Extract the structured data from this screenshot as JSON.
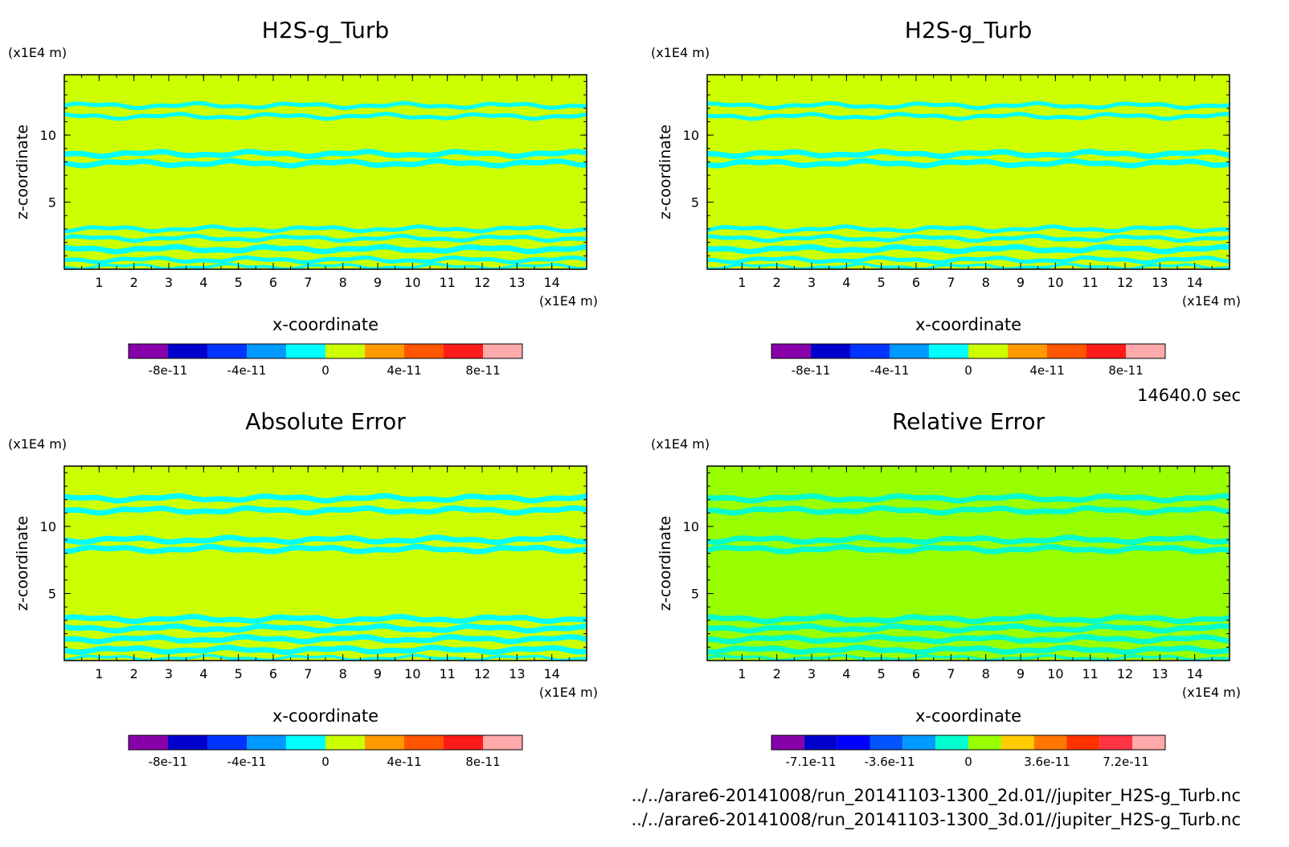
{
  "time_label": "14640.0 sec",
  "files": [
    "../../arare6-20141008/run_20141103-1300_2d.01//jupiter_H2S-g_Turb.nc",
    "../../arare6-20141008/run_20141103-1300_3d.01//jupiter_H2S-g_Turb.nc"
  ],
  "colors": {
    "field": "#ccff00",
    "field_relative": "#99ff00",
    "band": "#00ffff",
    "band_relative": "#00ffcc"
  },
  "chart_data": [
    {
      "type": "heatmap",
      "title": "H2S-g_Turb",
      "xlabel": "x-coordinate",
      "ylabel": "z-coordinate",
      "x_unit": "(x1E4 m)",
      "y_unit": "(x1E4 m)",
      "xlim": [
        0,
        15
      ],
      "ylim": [
        0,
        14.5
      ],
      "x_ticks": [
        "1",
        "2",
        "3",
        "4",
        "5",
        "6",
        "7",
        "8",
        "9",
        "10",
        "11",
        "12",
        "13",
        "14"
      ],
      "y_ticks": [
        "5",
        "10"
      ],
      "colorbar": {
        "colors": [
          "#8800aa",
          "#0000cc",
          "#0033ff",
          "#0099ff",
          "#00ffff",
          "#ccff00",
          "#ff9900",
          "#ff5500",
          "#ff1a1a",
          "#ffaaaa"
        ],
        "labels": [
          "-8e-11",
          "-4e-11",
          "0",
          "4e-11",
          "8e-11"
        ]
      },
      "bands": [
        {
          "z": 12.2,
          "thickness": 0.3
        },
        {
          "z": 11.4,
          "thickness": 0.3
        },
        {
          "z": 8.6,
          "thickness": 0.4
        },
        {
          "z": 7.9,
          "thickness": 0.4
        },
        {
          "z": 3.0,
          "thickness": 0.3
        },
        {
          "z": 2.3,
          "thickness": 0.3
        },
        {
          "z": 1.5,
          "thickness": 0.4
        },
        {
          "z": 0.7,
          "thickness": 0.3
        },
        {
          "z": 0.2,
          "thickness": 0.2
        }
      ]
    },
    {
      "type": "heatmap",
      "title": "H2S-g_Turb",
      "xlabel": "x-coordinate",
      "ylabel": "z-coordinate",
      "x_unit": "(x1E4 m)",
      "y_unit": "(x1E4 m)",
      "xlim": [
        0,
        15
      ],
      "ylim": [
        0,
        14.5
      ],
      "x_ticks": [
        "1",
        "2",
        "3",
        "4",
        "5",
        "6",
        "7",
        "8",
        "9",
        "10",
        "11",
        "12",
        "13",
        "14"
      ],
      "y_ticks": [
        "5",
        "10"
      ],
      "colorbar": {
        "colors": [
          "#8800aa",
          "#0000cc",
          "#0033ff",
          "#0099ff",
          "#00ffff",
          "#ccff00",
          "#ff9900",
          "#ff5500",
          "#ff1a1a",
          "#ffaaaa"
        ],
        "labels": [
          "-8e-11",
          "-4e-11",
          "0",
          "4e-11",
          "8e-11"
        ]
      },
      "bands": [
        {
          "z": 12.2,
          "thickness": 0.3
        },
        {
          "z": 11.4,
          "thickness": 0.3
        },
        {
          "z": 8.6,
          "thickness": 0.4
        },
        {
          "z": 7.9,
          "thickness": 0.4
        },
        {
          "z": 3.0,
          "thickness": 0.3
        },
        {
          "z": 2.3,
          "thickness": 0.3
        },
        {
          "z": 1.5,
          "thickness": 0.4
        },
        {
          "z": 0.7,
          "thickness": 0.3
        },
        {
          "z": 0.2,
          "thickness": 0.2
        }
      ]
    },
    {
      "type": "heatmap",
      "title": "Absolute Error",
      "xlabel": "x-coordinate",
      "ylabel": "z-coordinate",
      "x_unit": "(x1E4 m)",
      "y_unit": "(x1E4 m)",
      "xlim": [
        0,
        15
      ],
      "ylim": [
        0,
        14.5
      ],
      "x_ticks": [
        "1",
        "2",
        "3",
        "4",
        "5",
        "6",
        "7",
        "8",
        "9",
        "10",
        "11",
        "12",
        "13",
        "14"
      ],
      "y_ticks": [
        "5",
        "10"
      ],
      "colorbar": {
        "colors": [
          "#8800aa",
          "#0000cc",
          "#0033ff",
          "#0099ff",
          "#00ffff",
          "#ccff00",
          "#ff9900",
          "#ff5500",
          "#ff1a1a",
          "#ffaaaa"
        ],
        "labels": [
          "-8e-11",
          "-4e-11",
          "0",
          "4e-11",
          "8e-11"
        ]
      },
      "bands": [
        {
          "z": 12.1,
          "thickness": 0.4
        },
        {
          "z": 11.2,
          "thickness": 0.4
        },
        {
          "z": 9.0,
          "thickness": 0.4
        },
        {
          "z": 8.3,
          "thickness": 0.4
        },
        {
          "z": 3.1,
          "thickness": 0.4
        },
        {
          "z": 2.4,
          "thickness": 0.4
        },
        {
          "z": 1.6,
          "thickness": 0.4
        },
        {
          "z": 0.8,
          "thickness": 0.4
        },
        {
          "z": 0.2,
          "thickness": 0.2
        }
      ]
    },
    {
      "type": "heatmap",
      "title": "Relative Error",
      "xlabel": "x-coordinate",
      "ylabel": "z-coordinate",
      "x_unit": "(x1E4 m)",
      "y_unit": "(x1E4 m)",
      "xlim": [
        0,
        15
      ],
      "ylim": [
        0,
        14.5
      ],
      "x_ticks": [
        "1",
        "2",
        "3",
        "4",
        "5",
        "6",
        "7",
        "8",
        "9",
        "10",
        "11",
        "12",
        "13",
        "14"
      ],
      "y_ticks": [
        "5",
        "10"
      ],
      "colorbar": {
        "colors": [
          "#8800aa",
          "#0000cc",
          "#0000ff",
          "#0055ff",
          "#0099ff",
          "#00ffcc",
          "#99ff00",
          "#ffcc00",
          "#ff7700",
          "#ff3300",
          "#ff3344",
          "#ffaaaa"
        ],
        "labels": [
          "-7.1e-11",
          "-3.6e-11",
          "0",
          "3.6e-11",
          "7.2e-11"
        ]
      },
      "bands": [
        {
          "z": 12.1,
          "thickness": 0.4
        },
        {
          "z": 11.2,
          "thickness": 0.4
        },
        {
          "z": 9.0,
          "thickness": 0.4
        },
        {
          "z": 8.3,
          "thickness": 0.4
        },
        {
          "z": 3.1,
          "thickness": 0.4
        },
        {
          "z": 2.4,
          "thickness": 0.4
        },
        {
          "z": 1.6,
          "thickness": 0.4
        },
        {
          "z": 0.8,
          "thickness": 0.4
        },
        {
          "z": 0.2,
          "thickness": 0.2
        }
      ]
    }
  ]
}
